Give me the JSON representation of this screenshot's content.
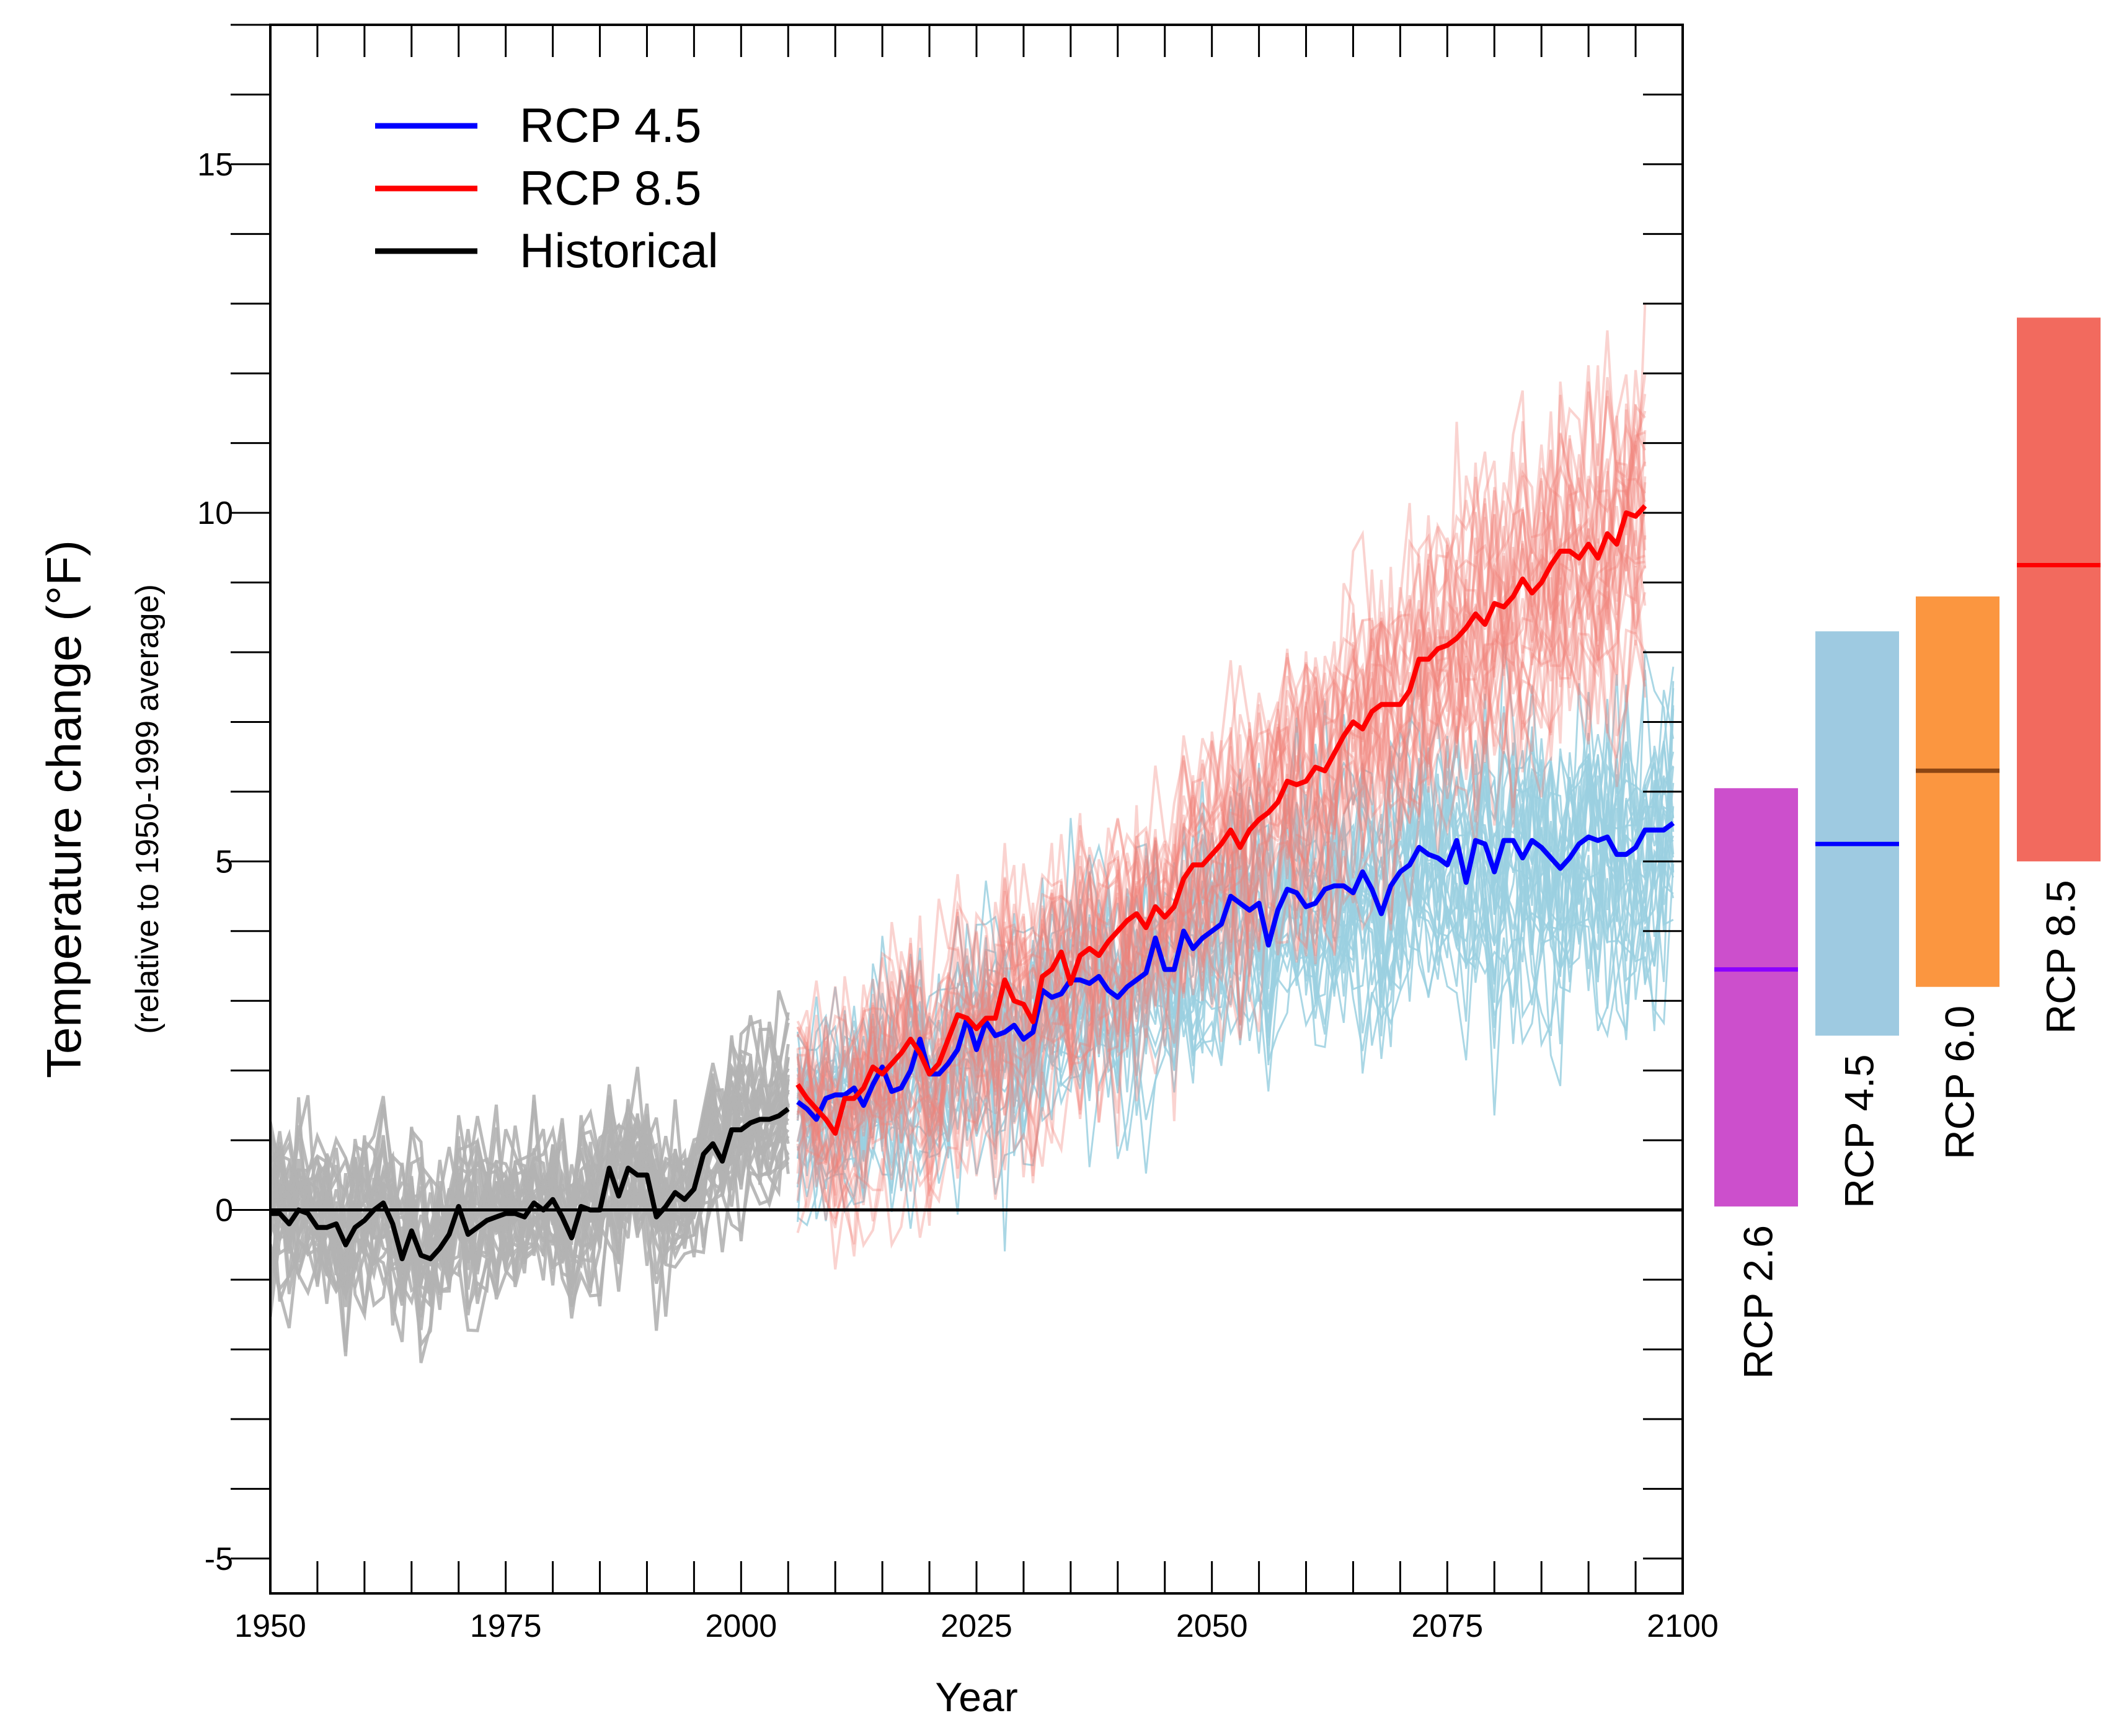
{
  "chart_data": {
    "type": "line",
    "title": "",
    "xlabel": "Year",
    "ylabel": "Temperature change (°F)",
    "ylabel_sub": "(relative to 1950-1999 average)",
    "xlim": [
      1950,
      2100
    ],
    "ylim": [
      -5.5,
      17
    ],
    "x_ticks": [
      1950,
      1975,
      2000,
      2025,
      2050,
      2075,
      2100
    ],
    "y_ticks": [
      -5,
      0,
      5,
      10,
      15
    ],
    "x_minor_step": 5,
    "y_minor_step": 1,
    "zero_line": true,
    "legend_position": "top-left",
    "legend": [
      {
        "label": "RCP 4.5",
        "color": "#0000ff"
      },
      {
        "label": "RCP 8.5",
        "color": "#ff0000"
      },
      {
        "label": "Historical",
        "color": "#000000"
      }
    ],
    "ensemble": {
      "historical_color": "#b3b3b3",
      "rcp45_color": "#9bd0e0",
      "rcp85_color": "#f08078",
      "members_historical": 30,
      "members_rcp45": 30,
      "members_rcp85": 30,
      "spread_historical": 1.3,
      "spread_rcp45": 1.6,
      "spread_rcp85": 1.7
    },
    "series": [
      {
        "name": "Historical",
        "color": "#000000",
        "x_start": 1950,
        "values": [
          -0.05,
          -0.05,
          -0.2,
          0.0,
          -0.05,
          -0.25,
          -0.25,
          -0.2,
          -0.5,
          -0.25,
          -0.15,
          0.0,
          0.1,
          -0.2,
          -0.7,
          -0.3,
          -0.65,
          -0.7,
          -0.55,
          -0.35,
          0.05,
          -0.35,
          -0.25,
          -0.15,
          -0.1,
          -0.05,
          -0.05,
          -0.1,
          0.1,
          0.0,
          0.15,
          -0.1,
          -0.4,
          0.05,
          0.0,
          0.0,
          0.6,
          0.2,
          0.6,
          0.5,
          0.5,
          -0.1,
          0.05,
          0.25,
          0.15,
          0.3,
          0.8,
          0.95,
          0.7,
          1.15,
          1.15,
          1.25,
          1.3,
          1.3,
          1.35,
          1.45
        ]
      },
      {
        "name": "RCP 4.5",
        "color": "#0000ff",
        "x_start": 2006,
        "values": [
          1.55,
          1.45,
          1.3,
          1.6,
          1.65,
          1.65,
          1.75,
          1.5,
          1.8,
          2.05,
          1.7,
          1.75,
          2.0,
          2.45,
          1.95,
          1.95,
          2.1,
          2.3,
          2.75,
          2.3,
          2.7,
          2.5,
          2.55,
          2.65,
          2.45,
          2.55,
          3.15,
          3.05,
          3.1,
          3.3,
          3.3,
          3.25,
          3.35,
          3.15,
          3.05,
          3.2,
          3.3,
          3.4,
          3.9,
          3.45,
          3.45,
          4.0,
          3.75,
          3.9,
          4.0,
          4.1,
          4.5,
          4.4,
          4.3,
          4.4,
          3.8,
          4.3,
          4.6,
          4.55,
          4.35,
          4.4,
          4.6,
          4.65,
          4.65,
          4.55,
          4.85,
          4.6,
          4.25,
          4.65,
          4.85,
          4.95,
          5.2,
          5.1,
          5.05,
          4.95,
          5.3,
          4.7,
          5.3,
          5.25,
          4.85,
          5.3,
          5.3,
          5.05,
          5.3,
          5.2,
          5.05,
          4.9,
          5.05,
          5.25,
          5.35,
          5.3,
          5.35,
          5.1,
          5.1,
          5.2,
          5.45,
          5.45,
          5.45,
          5.55
        ]
      },
      {
        "name": "RCP 8.5",
        "color": "#ff0000",
        "x_start": 2006,
        "values": [
          1.8,
          1.6,
          1.45,
          1.3,
          1.1,
          1.6,
          1.6,
          1.75,
          2.05,
          1.95,
          2.1,
          2.25,
          2.45,
          2.25,
          1.95,
          2.1,
          2.45,
          2.8,
          2.75,
          2.6,
          2.75,
          2.75,
          3.3,
          3.0,
          2.95,
          2.7,
          3.35,
          3.45,
          3.7,
          3.25,
          3.65,
          3.75,
          3.65,
          3.85,
          4.0,
          4.15,
          4.25,
          4.05,
          4.35,
          4.2,
          4.35,
          4.75,
          4.95,
          4.95,
          5.1,
          5.25,
          5.45,
          5.2,
          5.45,
          5.6,
          5.7,
          5.85,
          6.15,
          6.1,
          6.15,
          6.35,
          6.3,
          6.55,
          6.8,
          7.0,
          6.9,
          7.15,
          7.25,
          7.25,
          7.25,
          7.45,
          7.9,
          7.9,
          8.05,
          8.1,
          8.2,
          8.35,
          8.55,
          8.4,
          8.7,
          8.65,
          8.8,
          9.05,
          8.85,
          9.0,
          9.25,
          9.45,
          9.45,
          9.35,
          9.55,
          9.35,
          9.7,
          9.55,
          10.0,
          9.95,
          10.1
        ]
      }
    ],
    "range_bars": [
      {
        "label": "RCP 2.6",
        "low": 0.05,
        "high": 6.05,
        "mean": 3.45,
        "fill": "#cc4fcc",
        "line": "#8b00ff"
      },
      {
        "label": "RCP 4.5",
        "low": 2.5,
        "high": 8.3,
        "mean": 5.25,
        "fill": "#9ecae1",
        "line": "#0000ff"
      },
      {
        "label": "RCP 6.0",
        "low": 3.2,
        "high": 8.8,
        "mean": 6.3,
        "fill": "#fb9640",
        "line": "#8b4513"
      },
      {
        "label": "RCP 8.5",
        "low": 5.0,
        "high": 12.8,
        "mean": 9.25,
        "fill": "#f26a5e",
        "line": "#ff0000"
      }
    ]
  }
}
